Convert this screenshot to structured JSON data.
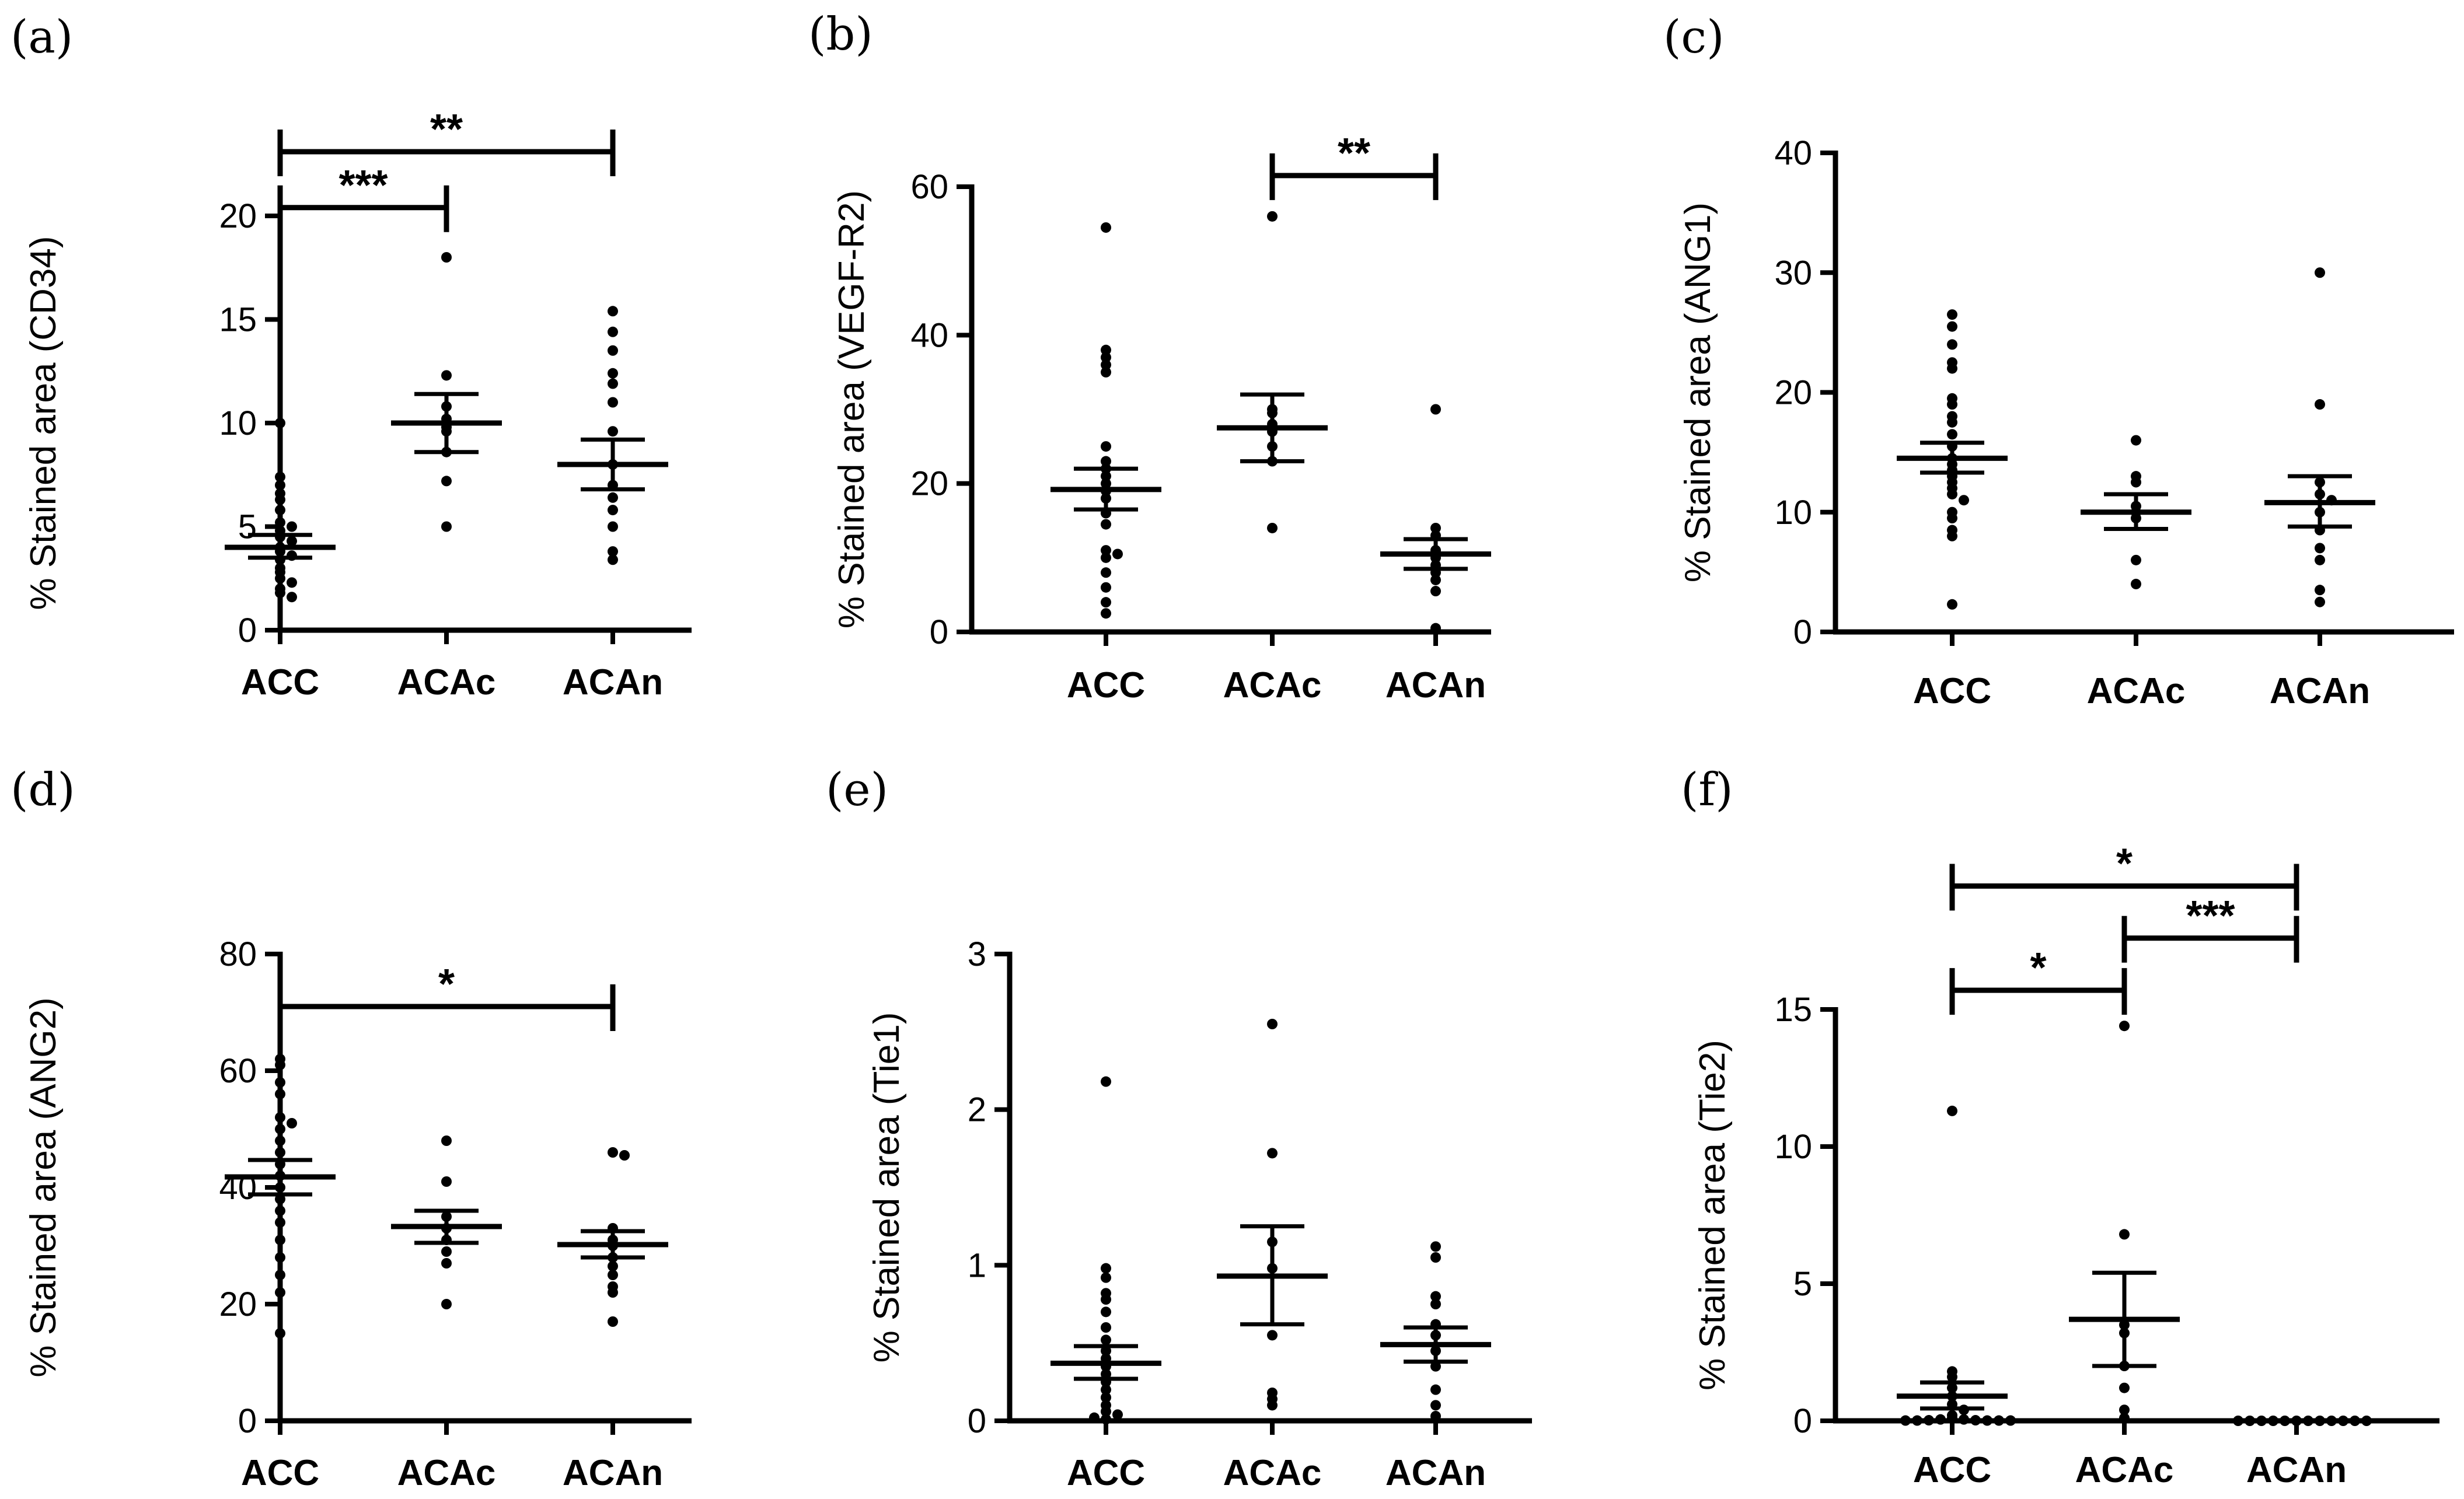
{
  "chart_data": [
    {
      "panel": "(a)",
      "type": "scatter",
      "marker": "circle",
      "categories": [
        "ACC",
        "ACAc",
        "ACAn"
      ],
      "ylabel": "% Stained area (CD34)",
      "ylim": [
        0,
        20
      ],
      "yticks": [
        0,
        5,
        10,
        15,
        20
      ],
      "groups": [
        {
          "name": "ACC",
          "mean": 4.0,
          "sem_low": 3.5,
          "sem_high": 4.6,
          "points": [
            10.0,
            7.4,
            7.0,
            6.6,
            6.3,
            5.8,
            5.2,
            5.0,
            4.8,
            4.5,
            4.3,
            4.0,
            3.8,
            3.6,
            3.4,
            3.0,
            2.8,
            2.5,
            2.3,
            2.0,
            1.8,
            1.6
          ]
        },
        {
          "name": "ACAc",
          "mean": 10.0,
          "sem_low": 8.6,
          "sem_high": 11.4,
          "points": [
            18.0,
            12.3,
            10.8,
            10.2,
            9.8,
            9.6,
            8.6,
            7.2,
            5.0
          ]
        },
        {
          "name": "ACAn",
          "mean": 8.0,
          "sem_low": 6.8,
          "sem_high": 9.2,
          "points": [
            15.4,
            14.4,
            13.5,
            12.4,
            11.9,
            11.0,
            9.6,
            8.0,
            7.0,
            6.4,
            5.8,
            5.0,
            3.8,
            3.4
          ]
        }
      ],
      "significance": [
        {
          "from": "ACC",
          "to": "ACAc",
          "label": "***",
          "y": 20.4
        },
        {
          "from": "ACC",
          "to": "ACAn",
          "label": "**",
          "y": 23.1
        }
      ]
    },
    {
      "panel": "(b)",
      "type": "scatter",
      "marker": "circle",
      "categories": [
        "ACC",
        "ACAc",
        "ACAn"
      ],
      "ylabel": "% Stained area (VEGF-R2)",
      "ylim": [
        0,
        60
      ],
      "yticks": [
        0,
        20,
        40,
        60
      ],
      "groups": [
        {
          "name": "ACC",
          "mean": 19.2,
          "sem_low": 16.5,
          "sem_high": 22.0,
          "points": [
            54.5,
            38.0,
            37.0,
            36.0,
            35.0,
            25.0,
            23.0,
            22.0,
            21.0,
            20.0,
            19.0,
            18.0,
            16.0,
            14.5,
            11.0,
            10.5,
            10.0,
            8.0,
            6.0,
            4.0,
            2.5
          ]
        },
        {
          "name": "ACAc",
          "mean": 27.5,
          "sem_low": 23.0,
          "sem_high": 32.0,
          "points": [
            56.0,
            30.0,
            29.5,
            28.0,
            27.0,
            25.0,
            23.0,
            14.0
          ]
        },
        {
          "name": "ACAn",
          "mean": 10.5,
          "sem_low": 8.5,
          "sem_high": 12.5,
          "points": [
            30.0,
            14.0,
            13.0,
            11.0,
            10.0,
            9.0,
            8.0,
            7.0,
            5.5,
            0.5
          ]
        }
      ],
      "significance": [
        {
          "from": "ACAc",
          "to": "ACAn",
          "label": "**",
          "y": 61.5
        }
      ]
    },
    {
      "panel": "(c)",
      "type": "scatter",
      "marker": "circle",
      "categories": [
        "ACC",
        "ACAc",
        "ACAn"
      ],
      "ylabel": "% Stained area (ANG1)",
      "ylim": [
        0,
        40
      ],
      "yticks": [
        0,
        10,
        20,
        30,
        40
      ],
      "groups": [
        {
          "name": "ACC",
          "mean": 14.5,
          "sem_low": 13.3,
          "sem_high": 15.8,
          "points": [
            26.5,
            25.5,
            24.0,
            22.5,
            22.0,
            19.5,
            19.0,
            18.0,
            17.5,
            16.5,
            15.5,
            14.5,
            14.0,
            13.5,
            13.0,
            12.5,
            12.0,
            11.5,
            11.0,
            10.0,
            9.5,
            8.5,
            8.0,
            2.3
          ]
        },
        {
          "name": "ACAc",
          "mean": 10.0,
          "sem_low": 8.6,
          "sem_high": 11.5,
          "points": [
            16.0,
            13.0,
            12.5,
            10.5,
            10.0,
            9.5,
            6.0,
            4.0
          ]
        },
        {
          "name": "ACAn",
          "mean": 10.8,
          "sem_low": 8.8,
          "sem_high": 13.0,
          "points": [
            30.0,
            19.0,
            12.5,
            11.5,
            11.0,
            10.0,
            8.5,
            7.0,
            6.0,
            3.5,
            2.5
          ]
        }
      ]
    },
    {
      "panel": "(d)",
      "type": "scatter",
      "marker": "circle",
      "categories": [
        "ACC",
        "ACAc",
        "ACAn"
      ],
      "ylabel": "% Stained area (ANG2)",
      "ylim": [
        0,
        80
      ],
      "yticks": [
        0,
        20,
        40,
        60,
        80
      ],
      "groups": [
        {
          "name": "ACC",
          "mean": 41.8,
          "sem_low": 38.8,
          "sem_high": 44.7,
          "points": [
            62.0,
            61.0,
            58.0,
            56.0,
            52.0,
            51.0,
            50.0,
            48.0,
            46.0,
            44.0,
            42.0,
            40.0,
            38.0,
            36.0,
            34.0,
            31.0,
            28.0,
            25.0,
            22.0,
            15.0
          ]
        },
        {
          "name": "ACAc",
          "mean": 33.3,
          "sem_low": 30.5,
          "sem_high": 36.0,
          "points": [
            48.0,
            41.0,
            35.0,
            33.0,
            31.0,
            29.0,
            27.0,
            20.0
          ]
        },
        {
          "name": "ACAn",
          "mean": 30.2,
          "sem_low": 28.0,
          "sem_high": 32.5,
          "points": [
            46.0,
            45.5,
            33.0,
            31.0,
            30.0,
            28.0,
            26.5,
            25.0,
            23.0,
            22.0,
            17.0
          ]
        }
      ],
      "significance": [
        {
          "from": "ACC",
          "to": "ACAn",
          "label": "*",
          "y": 71.0
        }
      ]
    },
    {
      "panel": "(e)",
      "type": "scatter",
      "marker": "circle",
      "categories": [
        "ACC",
        "ACAc",
        "ACAn"
      ],
      "ylabel": "% Stained area (Tie1)",
      "ylim": [
        0,
        3
      ],
      "yticks": [
        0,
        1,
        2,
        3
      ],
      "groups": [
        {
          "name": "ACC",
          "mean": 0.37,
          "sem_low": 0.27,
          "sem_high": 0.48,
          "points": [
            2.18,
            0.98,
            0.92,
            0.82,
            0.78,
            0.7,
            0.6,
            0.52,
            0.45,
            0.4,
            0.35,
            0.3,
            0.25,
            0.2,
            0.15,
            0.1,
            0.06,
            0.04,
            0.02,
            0.01
          ]
        },
        {
          "name": "ACAc",
          "mean": 0.93,
          "sem_low": 0.62,
          "sem_high": 1.25,
          "points": [
            2.55,
            1.72,
            1.15,
            0.98,
            0.55,
            0.18,
            0.14,
            0.1
          ]
        },
        {
          "name": "ACAn",
          "mean": 0.49,
          "sem_low": 0.38,
          "sem_high": 0.6,
          "points": [
            1.12,
            1.05,
            0.8,
            0.75,
            0.62,
            0.55,
            0.45,
            0.35,
            0.2,
            0.1,
            0.03
          ]
        }
      ]
    },
    {
      "panel": "(f)",
      "type": "scatter",
      "marker": "circle",
      "categories": [
        "ACC",
        "ACAc",
        "ACAn"
      ],
      "ylabel": "% Stained area (Tie2)",
      "ylim": [
        0,
        15
      ],
      "yticks": [
        0,
        5,
        10,
        15
      ],
      "groups": [
        {
          "name": "ACC",
          "mean": 0.9,
          "sem_low": 0.45,
          "sem_high": 1.4,
          "points": [
            11.3,
            1.8,
            1.6,
            1.2,
            0.9,
            0.6,
            0.4,
            0.2,
            0.1,
            0.05,
            0.05,
            0.02,
            0.02,
            0.01,
            0.01,
            0.01,
            0.01,
            0.01
          ]
        },
        {
          "name": "ACAc",
          "mean": 3.7,
          "sem_low": 2.0,
          "sem_high": 5.4,
          "points": [
            14.4,
            6.8,
            3.5,
            3.2,
            2.0,
            1.2,
            0.4,
            0.1
          ]
        },
        {
          "name": "ACAn",
          "mean": 0.0,
          "sem_low": 0.0,
          "sem_high": 0.0,
          "points": [
            0.0,
            0.0,
            0.0,
            0.0,
            0.0,
            0.0,
            0.0,
            0.0,
            0.0,
            0.0,
            0.0,
            0.0
          ]
        }
      ],
      "significance": [
        {
          "from": "ACC",
          "to": "ACAc",
          "label": "*",
          "y": 15.7
        },
        {
          "from": "ACAc",
          "to": "ACAn",
          "label": "***",
          "y": 17.6
        },
        {
          "from": "ACC",
          "to": "ACAn",
          "label": "*",
          "y": 19.5
        }
      ]
    }
  ]
}
